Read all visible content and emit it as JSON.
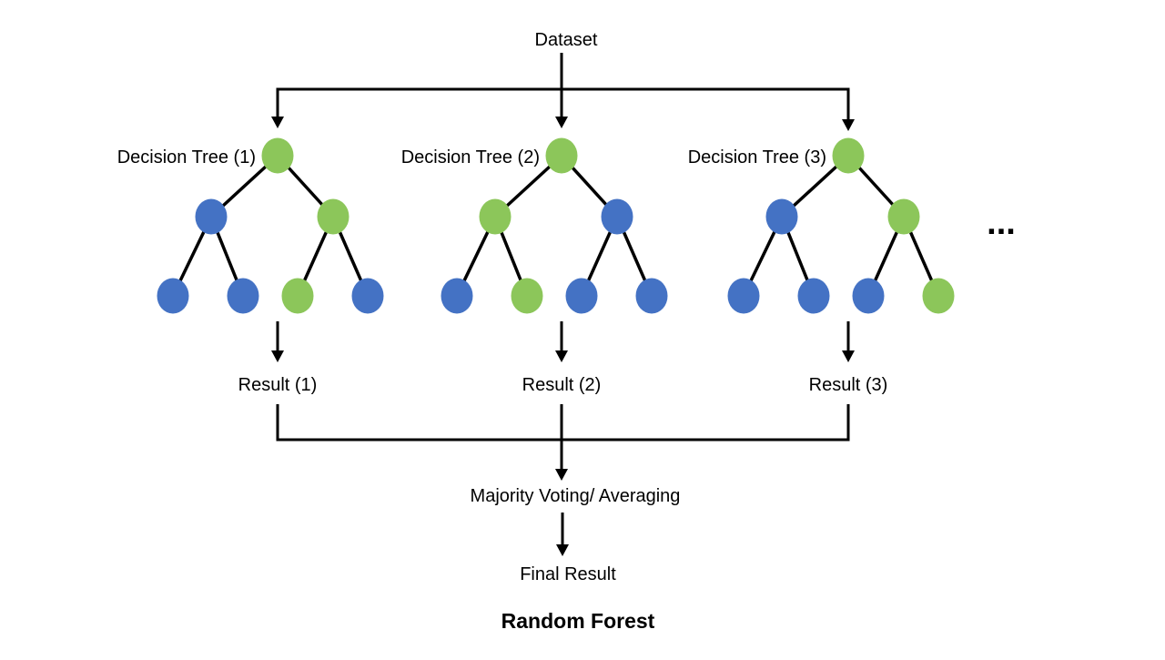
{
  "diagram": {
    "dataset_label": "Dataset",
    "ellipsis_label": "...",
    "majority_label": "Majority Voting/ Averaging",
    "final_label": "Final Result",
    "caption": "Random Forest",
    "colors": {
      "green": "#8CC65A",
      "blue": "#4472C4",
      "line": "#000000",
      "text": "#000000",
      "background": "#FFFFFF"
    },
    "trees": [
      {
        "label": "Decision Tree (1)",
        "result_label": "Result (1)",
        "node_colors": [
          "green",
          "blue",
          "green",
          "blue",
          "blue",
          "green",
          "blue"
        ]
      },
      {
        "label": "Decision Tree (2)",
        "result_label": "Result (2)",
        "node_colors": [
          "green",
          "green",
          "blue",
          "blue",
          "green",
          "blue",
          "blue"
        ]
      },
      {
        "label": "Decision Tree (3)",
        "result_label": "Result (3)",
        "node_colors": [
          "green",
          "blue",
          "green",
          "blue",
          "blue",
          "blue",
          "green"
        ]
      }
    ]
  }
}
